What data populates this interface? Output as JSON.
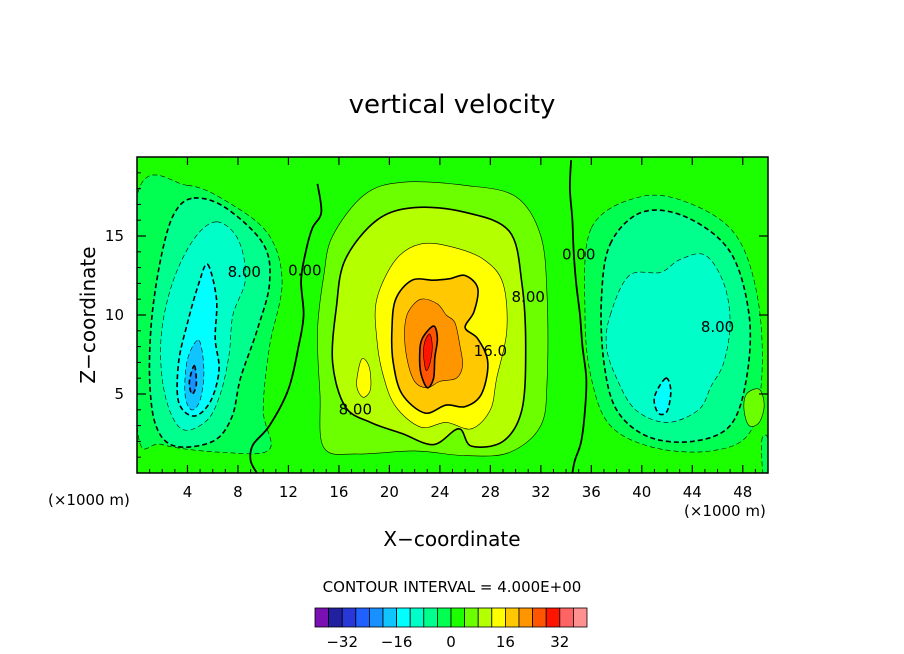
{
  "chart_data": {
    "type": "heatmap",
    "title": "vertical velocity",
    "xlabel": "X−coordinate",
    "ylabel": "Z−coordinate",
    "x_unit": "(×1000 m)",
    "x_unit_right": "(×1000 m)",
    "xlim": [
      0,
      50
    ],
    "ylim": [
      0,
      20
    ],
    "x_ticks": [
      4,
      8,
      12,
      16,
      20,
      24,
      28,
      32,
      36,
      40,
      44,
      48
    ],
    "y_ticks": [
      5,
      10,
      15
    ],
    "contour_interval_text": "CONTOUR INTERVAL = 4.000E+00",
    "contour_labels": [
      {
        "text": "8.00",
        "x": 8.5,
        "y": 12.7
      },
      {
        "text": "0.00",
        "x": 13.3,
        "y": 12.8
      },
      {
        "text": "8.00",
        "x": 17.3,
        "y": 4.0
      },
      {
        "text": "16.0",
        "x": 28.0,
        "y": 7.7
      },
      {
        "text": "8.00",
        "x": 31.0,
        "y": 11.1
      },
      {
        "text": "0.00",
        "x": 35.0,
        "y": 13.8
      },
      {
        "text": "8.00",
        "x": 46.0,
        "y": 9.2
      }
    ],
    "colorbar": {
      "levels": [
        -36,
        -32,
        -28,
        -24,
        -20,
        -16,
        -12,
        -8,
        -4,
        0,
        4,
        8,
        12,
        16,
        20,
        24,
        28,
        32,
        36
      ],
      "tick_labels": [
        "−32",
        "−16",
        "0",
        "16",
        "32"
      ],
      "tick_values": [
        -32,
        -16,
        0,
        16,
        32
      ],
      "colors": [
        "#7a0fb4",
        "#2020a0",
        "#2838d8",
        "#2060ff",
        "#1890ff",
        "#10c4ff",
        "#00ffff",
        "#00ffc8",
        "#00ff8c",
        "#00ff50",
        "#1cff00",
        "#6cff00",
        "#b4ff00",
        "#ffff00",
        "#ffc800",
        "#ff9600",
        "#ff5500",
        "#ff1400",
        "#ff6464",
        "#ff9090"
      ]
    },
    "regions": [
      {
        "level": 0,
        "color": "#1cff00",
        "type": "background"
      },
      {
        "level": -4,
        "color": "#00ff50",
        "shape": [
          [
            4,
            18.2
          ],
          [
            7.5,
            17
          ],
          [
            10.5,
            15
          ],
          [
            11.5,
            12
          ],
          [
            10.5,
            8
          ],
          [
            10,
            4
          ],
          [
            10.5,
            1.5
          ],
          [
            7,
            1.3
          ],
          [
            2,
            1.8
          ],
          [
            0,
            3
          ],
          [
            0,
            17.5
          ]
        ]
      },
      {
        "level": -4,
        "color": "#00ff50",
        "shape": [
          [
            36,
            15.5
          ],
          [
            40,
            17.5
          ],
          [
            44,
            17
          ],
          [
            47.5,
            15
          ],
          [
            49.2,
            11
          ],
          [
            49.5,
            6
          ],
          [
            48.5,
            2.5
          ],
          [
            45.5,
            1.4
          ],
          [
            41,
            1.6
          ],
          [
            37.5,
            3
          ],
          [
            36,
            6
          ],
          [
            35.5,
            10
          ]
        ]
      },
      {
        "level": -8,
        "color": "#00ff8c",
        "shape": [
          [
            4.5,
            17.4
          ],
          [
            7,
            16.8
          ],
          [
            10,
            14.5
          ],
          [
            10.5,
            12
          ],
          [
            9.5,
            9
          ],
          [
            8.2,
            6
          ],
          [
            7.5,
            3.5
          ],
          [
            6,
            2
          ],
          [
            3,
            1.7
          ],
          [
            1.5,
            3
          ],
          [
            1,
            6
          ],
          [
            1.2,
            10
          ],
          [
            2,
            14
          ],
          [
            3,
            16.5
          ]
        ]
      },
      {
        "level": -8,
        "color": "#00ff8c",
        "shape": [
          [
            37.5,
            14.5
          ],
          [
            40,
            16.5
          ],
          [
            43.5,
            16.2
          ],
          [
            47,
            14
          ],
          [
            48.5,
            10
          ],
          [
            48.3,
            6
          ],
          [
            47,
            3
          ],
          [
            44,
            2
          ],
          [
            40.5,
            2.3
          ],
          [
            38,
            4
          ],
          [
            37,
            7
          ],
          [
            36.8,
            11
          ]
        ]
      },
      {
        "level": -12,
        "color": "#00ffc8",
        "shape": [
          [
            6.3,
            15.9
          ],
          [
            8,
            14.8
          ],
          [
            8.6,
            12.3
          ],
          [
            7.6,
            10
          ],
          [
            7.3,
            7.5
          ],
          [
            6.6,
            5
          ],
          [
            5.5,
            3.3
          ],
          [
            3.5,
            2.8
          ],
          [
            2.2,
            5
          ],
          [
            1.9,
            8.5
          ],
          [
            2.8,
            12
          ],
          [
            4.5,
            14.8
          ]
        ]
      },
      {
        "level": -12,
        "color": "#00ffc8",
        "shape": [
          [
            37.5,
            10
          ],
          [
            39,
            12.5
          ],
          [
            41.5,
            12.7
          ],
          [
            43,
            13.5
          ],
          [
            45,
            13.8
          ],
          [
            46.5,
            12
          ],
          [
            47,
            9.5
          ],
          [
            46.5,
            7
          ],
          [
            45.5,
            5.5
          ],
          [
            44.5,
            4
          ],
          [
            42,
            3.2
          ],
          [
            39.5,
            4
          ],
          [
            38,
            6
          ],
          [
            37.2,
            8
          ]
        ]
      },
      {
        "level": -16,
        "color": "#00ffff",
        "shape": [
          [
            5.6,
            13.2
          ],
          [
            6.3,
            11
          ],
          [
            6.2,
            8.5
          ],
          [
            6.5,
            6.5
          ],
          [
            5.8,
            4.5
          ],
          [
            4.5,
            3.6
          ],
          [
            3.3,
            4.5
          ],
          [
            3.3,
            7
          ],
          [
            4,
            9.5
          ],
          [
            4.9,
            12
          ]
        ]
      },
      {
        "level": -16,
        "color": "#00ffff",
        "shape": [
          [
            41.9,
            6
          ],
          [
            42.3,
            5.2
          ],
          [
            42,
            3.9
          ],
          [
            41.3,
            3.8
          ],
          [
            41,
            4.8
          ]
        ]
      },
      {
        "level": -20,
        "color": "#10c4ff",
        "shape": [
          [
            4.9,
            8.4
          ],
          [
            5.3,
            6.5
          ],
          [
            5,
            4.6
          ],
          [
            4.3,
            4
          ],
          [
            3.8,
            5
          ],
          [
            4,
            7.2
          ]
        ]
      },
      {
        "level": -24,
        "color": "#1890ff",
        "shape": [
          [
            4.55,
            6.8
          ],
          [
            4.7,
            5.6
          ],
          [
            4.35,
            5
          ],
          [
            4.15,
            5.8
          ]
        ]
      },
      {
        "level": 4,
        "color": "#6cff00",
        "shape": [
          [
            15.5,
            15
          ],
          [
            18,
            17.6
          ],
          [
            21,
            18.4
          ],
          [
            26,
            18.2
          ],
          [
            30,
            17.5
          ],
          [
            32,
            15
          ],
          [
            32.5,
            11
          ],
          [
            32.5,
            6
          ],
          [
            32,
            3
          ],
          [
            29.5,
            1.3
          ],
          [
            26,
            1.1
          ],
          [
            22,
            1.4
          ],
          [
            17.5,
            1.2
          ],
          [
            14.8,
            1.6
          ],
          [
            14.5,
            5
          ],
          [
            14.3,
            9
          ],
          [
            14.8,
            12.5
          ]
        ]
      },
      {
        "level": 8,
        "color": "#b4ff00",
        "shape": [
          [
            16.5,
            13.5
          ],
          [
            19,
            16
          ],
          [
            22,
            16.8
          ],
          [
            26,
            16.5
          ],
          [
            29.5,
            15.3
          ],
          [
            30.5,
            12
          ],
          [
            30.8,
            8
          ],
          [
            30.5,
            4
          ],
          [
            29,
            2
          ],
          [
            26.5,
            1.7
          ],
          [
            25.5,
            2.8
          ],
          [
            23.5,
            1.8
          ],
          [
            21,
            2.5
          ],
          [
            18.5,
            3.2
          ],
          [
            16.5,
            4.2
          ],
          [
            15.5,
            7
          ],
          [
            15.8,
            10.5
          ]
        ]
      },
      {
        "level": 12,
        "color": "#ffff00",
        "shape": [
          [
            19,
            11
          ],
          [
            20.5,
            13.5
          ],
          [
            22.5,
            14.5
          ],
          [
            25,
            14.3
          ],
          [
            27.5,
            13.5
          ],
          [
            29,
            12
          ],
          [
            29.3,
            9
          ],
          [
            28.5,
            6
          ],
          [
            28,
            4
          ],
          [
            26.5,
            2.8
          ],
          [
            24.5,
            3.2
          ],
          [
            22.5,
            2.9
          ],
          [
            20.5,
            4.2
          ],
          [
            19.5,
            6.2
          ],
          [
            19,
            8.5
          ]
        ]
      },
      {
        "level": 12,
        "color": "#ffff00",
        "shape": [
          [
            17.8,
            7.2
          ],
          [
            18.4,
            6.7
          ],
          [
            18.5,
            5.3
          ],
          [
            17.9,
            4.8
          ],
          [
            17.4,
            5.6
          ]
        ]
      },
      {
        "level": 16,
        "color": "#ffc800",
        "shape": [
          [
            20.5,
            11
          ],
          [
            21.8,
            12.2
          ],
          [
            23.5,
            12.2
          ],
          [
            24.8,
            12.3
          ],
          [
            26,
            12.5
          ],
          [
            27,
            11.7
          ],
          [
            26.7,
            10.2
          ],
          [
            26,
            9.2
          ],
          [
            27,
            8.5
          ],
          [
            27.8,
            7
          ],
          [
            27.3,
            5
          ],
          [
            26,
            4.2
          ],
          [
            24.5,
            4.3
          ],
          [
            22.8,
            3.8
          ],
          [
            21,
            5
          ],
          [
            20.3,
            7
          ],
          [
            20.2,
            9
          ]
        ]
      },
      {
        "level": 20,
        "color": "#ff9600",
        "shape": [
          [
            21.5,
            10.2
          ],
          [
            22.5,
            11
          ],
          [
            23.8,
            10.7
          ],
          [
            24.5,
            10
          ],
          [
            25.2,
            9.5
          ],
          [
            25.6,
            8
          ],
          [
            25.8,
            6.8
          ],
          [
            25.3,
            6
          ],
          [
            24,
            5.8
          ],
          [
            23,
            5.4
          ],
          [
            22,
            5.8
          ],
          [
            21.4,
            7.2
          ],
          [
            21.2,
            9
          ]
        ]
      },
      {
        "level": 24,
        "color": "#ff5500",
        "shape": [
          [
            22.6,
            8.5
          ],
          [
            23.5,
            9.3
          ],
          [
            23.8,
            8.5
          ],
          [
            23.6,
            7.3
          ],
          [
            23.5,
            6
          ],
          [
            23,
            5.4
          ],
          [
            22.5,
            6.3
          ],
          [
            22.4,
            7.5
          ]
        ]
      },
      {
        "level": 28,
        "color": "#ff1400",
        "shape": [
          [
            22.8,
            8.3
          ],
          [
            23.2,
            8.8
          ],
          [
            23.4,
            8
          ],
          [
            23.2,
            6.9
          ],
          [
            22.9,
            6.5
          ],
          [
            22.7,
            7.5
          ]
        ]
      },
      {
        "level": 4,
        "color": "#6cff00",
        "shape": [
          [
            48.3,
            5
          ],
          [
            49.3,
            5.3
          ],
          [
            49.7,
            4.3
          ],
          [
            49.3,
            3.2
          ],
          [
            48.5,
            3
          ],
          [
            48.1,
            4
          ]
        ]
      },
      {
        "level": -4,
        "color": "#00ff50",
        "shape": [
          [
            49.5,
            2
          ],
          [
            49.8,
            2.4
          ],
          [
            50,
            2
          ],
          [
            50,
            0
          ],
          [
            49.6,
            0
          ]
        ]
      }
    ],
    "contour_lines": [
      {
        "level": 0,
        "style": "solid",
        "points": [
          [
            14.3,
            18.3
          ],
          [
            14.6,
            16.5
          ],
          [
            13.9,
            15.5
          ],
          [
            13.4,
            14.1
          ],
          [
            13,
            12.2
          ],
          [
            13.2,
            10
          ],
          [
            12.8,
            8
          ],
          [
            12,
            5.3
          ],
          [
            10.5,
            3
          ],
          [
            9.2,
            1.8
          ],
          [
            9,
            0.8
          ],
          [
            9.5,
            0
          ]
        ]
      },
      {
        "level": 0,
        "style": "solid",
        "points": [
          [
            34.4,
            19.8
          ],
          [
            34.3,
            18
          ],
          [
            34.5,
            16
          ],
          [
            34.6,
            14
          ],
          [
            34.8,
            12
          ],
          [
            35.1,
            10
          ],
          [
            35.3,
            8
          ],
          [
            35.6,
            6
          ],
          [
            35.5,
            4
          ],
          [
            35.2,
            2
          ],
          [
            34.7,
            0.8
          ],
          [
            34.5,
            0
          ]
        ]
      }
    ]
  }
}
